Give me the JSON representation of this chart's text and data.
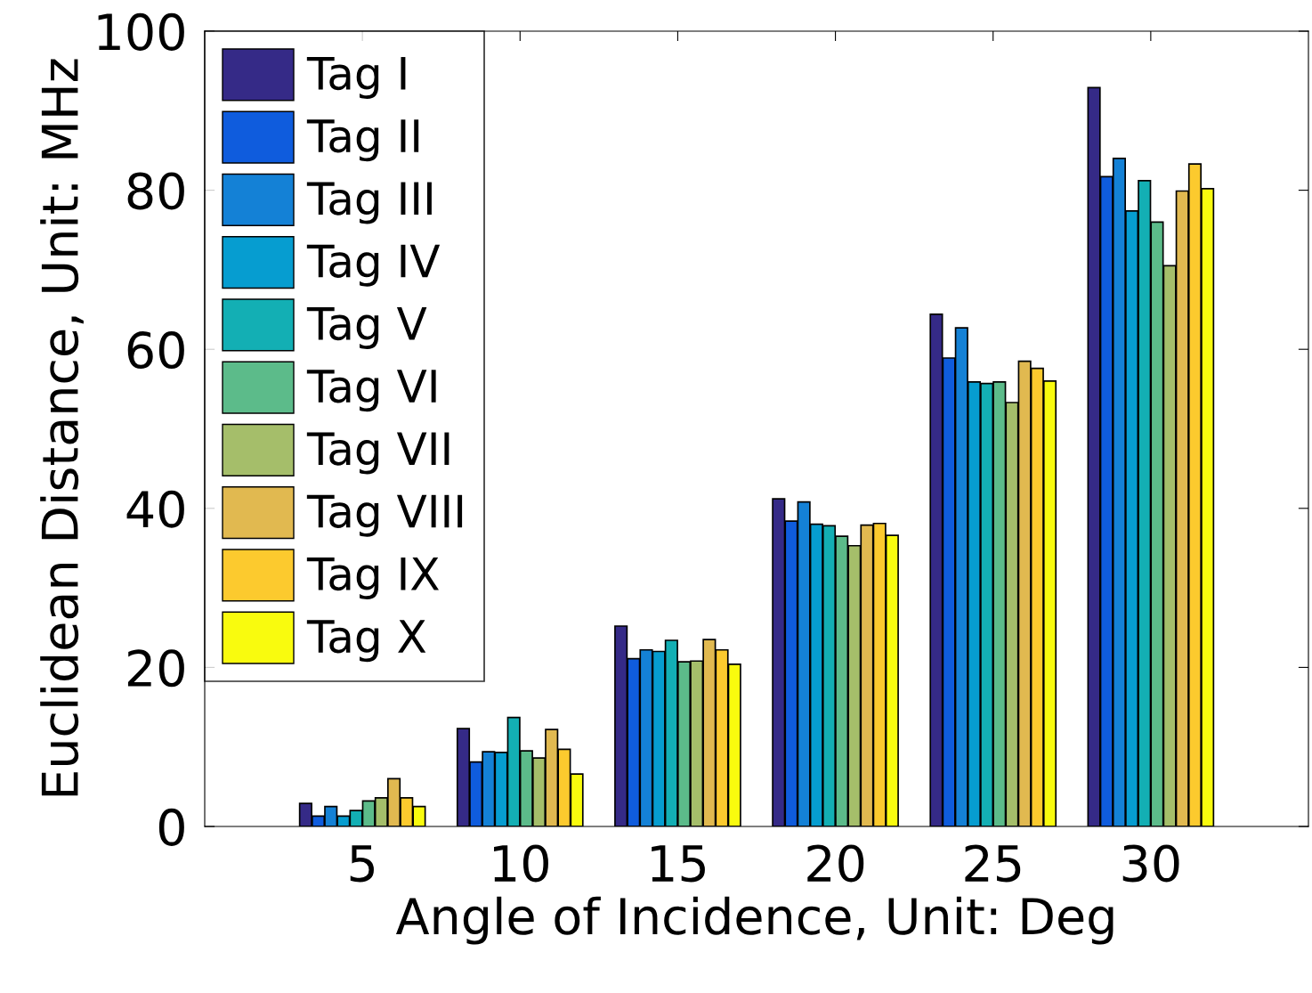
{
  "chart_data": {
    "type": "bar",
    "xlabel": "Angle of Incidence, Unit: Deg",
    "ylabel": "Euclidean Distance, Unit: MHz",
    "x": [
      5,
      10,
      15,
      20,
      25,
      30
    ],
    "xlim": [
      0,
      35
    ],
    "xticks": [
      5,
      10,
      15,
      20,
      25,
      30
    ],
    "ylim": [
      0,
      100
    ],
    "yticks": [
      0,
      20,
      40,
      60,
      80,
      100
    ],
    "grid": false,
    "legend": "top left",
    "series": [
      {
        "name": "Tag I",
        "color": "#352a87",
        "values": [
          2.9,
          12.3,
          25.2,
          41.2,
          64.4,
          92.9
        ]
      },
      {
        "name": "Tag II",
        "color": "#0f5cdd",
        "values": [
          1.3,
          8.1,
          21.1,
          38.4,
          58.9,
          81.7
        ]
      },
      {
        "name": "Tag III",
        "color": "#1481d6",
        "values": [
          2.5,
          9.4,
          22.2,
          40.8,
          62.7,
          84.0
        ]
      },
      {
        "name": "Tag IV",
        "color": "#069dd0",
        "values": [
          1.3,
          9.3,
          22.0,
          38.0,
          55.9,
          77.4
        ]
      },
      {
        "name": "Tag V",
        "color": "#13afb4",
        "values": [
          2.0,
          13.7,
          23.4,
          37.8,
          55.7,
          81.2
        ]
      },
      {
        "name": "Tag VI",
        "color": "#5cbb8a",
        "values": [
          3.2,
          9.5,
          20.7,
          36.5,
          55.9,
          76.0
        ]
      },
      {
        "name": "Tag VII",
        "color": "#a5be6a",
        "values": [
          3.6,
          8.6,
          20.8,
          35.3,
          53.3,
          70.5
        ]
      },
      {
        "name": "Tag VIII",
        "color": "#e1b950",
        "values": [
          6.0,
          12.2,
          23.5,
          37.9,
          58.5,
          79.9
        ]
      },
      {
        "name": "Tag IX",
        "color": "#fcca2e",
        "values": [
          3.6,
          9.7,
          22.2,
          38.1,
          57.6,
          83.3
        ]
      },
      {
        "name": "Tag X",
        "color": "#f9fb0e",
        "values": [
          2.5,
          6.6,
          20.4,
          36.6,
          56.0,
          80.2
        ]
      }
    ]
  }
}
